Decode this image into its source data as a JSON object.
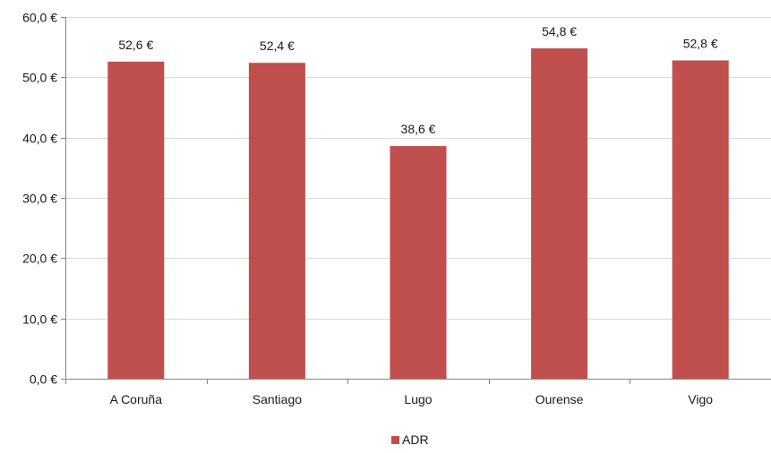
{
  "chart_data": {
    "type": "bar",
    "title": "",
    "xlabel": "",
    "ylabel": "",
    "categories": [
      "A Coruña",
      "Santiago",
      "Lugo",
      "Ourense",
      "Vigo"
    ],
    "series": [
      {
        "name": "ADR",
        "values": [
          52.6,
          52.4,
          38.6,
          54.8,
          52.8
        ],
        "value_labels": [
          "52,6 €",
          "52,4 €",
          "38,6 €",
          "54,8 €",
          "52,8 €"
        ],
        "color": "#c0504d"
      }
    ],
    "ylim": [
      0,
      60
    ],
    "yticks": [
      0,
      10,
      20,
      30,
      40,
      50,
      60
    ],
    "ytick_labels": [
      "0,0 €",
      "10,0 €",
      "20,0 €",
      "30,0 €",
      "40,0 €",
      "50,0 €",
      "60,0 €"
    ],
    "grid": true,
    "gridline_color": "#d9d9d9",
    "axis_color": "#868686",
    "legend_position": "bottom"
  }
}
